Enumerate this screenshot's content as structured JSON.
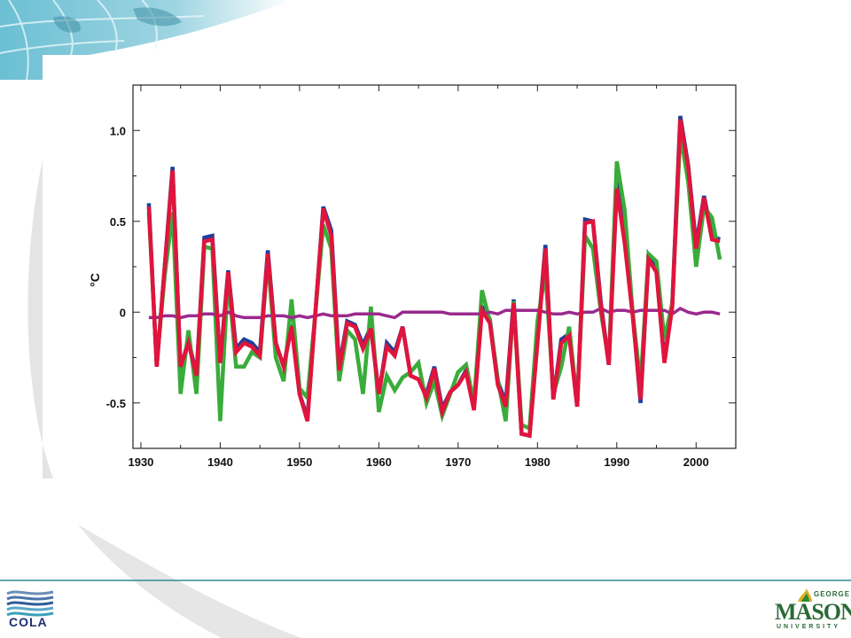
{
  "slide": {
    "colors": {
      "globe_teal": "#5fb3c9",
      "swoosh_gray": "#e4e4e4",
      "footer_rule": "#2b8c95"
    }
  },
  "chart_data": {
    "type": "line",
    "ylabel": "°C",
    "xlim": [
      1929,
      2005
    ],
    "ylim": [
      -0.75,
      1.25
    ],
    "x_ticks": [
      1930,
      1940,
      1950,
      1960,
      1970,
      1980,
      1990,
      2000
    ],
    "y_ticks": [
      1.0,
      0.5,
      0,
      -0.5
    ],
    "y_tick_labels": [
      "1.0",
      "0.5",
      "0",
      "-0.5"
    ],
    "grid": false,
    "x": [
      1931,
      1932,
      1933,
      1934,
      1935,
      1936,
      1937,
      1938,
      1939,
      1940,
      1941,
      1942,
      1943,
      1944,
      1945,
      1946,
      1947,
      1948,
      1949,
      1950,
      1951,
      1952,
      1953,
      1954,
      1955,
      1956,
      1957,
      1958,
      1959,
      1960,
      1961,
      1962,
      1963,
      1964,
      1965,
      1966,
      1967,
      1968,
      1969,
      1970,
      1971,
      1972,
      1973,
      1974,
      1975,
      1976,
      1977,
      1978,
      1979,
      1980,
      1981,
      1982,
      1983,
      1984,
      1985,
      1986,
      1987,
      1988,
      1989,
      1990,
      1991,
      1992,
      1993,
      1994,
      1995,
      1996,
      1997,
      1998,
      1999,
      2000,
      2001,
      2002,
      2003
    ],
    "series": [
      {
        "color": "#1f3f9a",
        "values": [
          0.6,
          -0.3,
          0.25,
          0.8,
          -0.32,
          -0.15,
          -0.35,
          0.41,
          0.42,
          -0.28,
          0.23,
          -0.2,
          -0.15,
          -0.17,
          -0.22,
          0.34,
          -0.17,
          -0.3,
          -0.07,
          -0.45,
          -0.58,
          0.0,
          0.58,
          0.45,
          -0.3,
          -0.05,
          -0.07,
          -0.18,
          -0.08,
          -0.45,
          -0.17,
          -0.22,
          -0.08,
          -0.35,
          -0.37,
          -0.45,
          -0.3,
          -0.53,
          -0.44,
          -0.4,
          -0.32,
          -0.52,
          0.03,
          -0.04,
          -0.38,
          -0.5,
          0.07,
          -0.67,
          -0.68,
          -0.15,
          0.37,
          -0.48,
          -0.15,
          -0.12,
          -0.52,
          0.51,
          0.5,
          0.05,
          -0.29,
          0.72,
          0.4,
          0.0,
          -0.5,
          0.31,
          0.23,
          -0.27,
          0.05,
          1.08,
          0.81,
          0.37,
          0.64,
          0.42,
          0.4
        ]
      },
      {
        "color": "#3aac3a",
        "values": [
          0.55,
          -0.28,
          0.2,
          0.55,
          -0.45,
          -0.1,
          -0.45,
          0.36,
          0.35,
          -0.6,
          0.2,
          -0.3,
          -0.3,
          -0.22,
          -0.25,
          0.3,
          -0.25,
          -0.38,
          0.07,
          -0.42,
          -0.47,
          0.0,
          0.48,
          0.35,
          -0.38,
          -0.1,
          -0.15,
          -0.45,
          0.03,
          -0.55,
          -0.35,
          -0.43,
          -0.36,
          -0.33,
          -0.28,
          -0.5,
          -0.38,
          -0.57,
          -0.45,
          -0.33,
          -0.29,
          -0.5,
          0.12,
          -0.05,
          -0.37,
          -0.6,
          0.06,
          -0.62,
          -0.64,
          -0.05,
          0.22,
          -0.45,
          -0.3,
          -0.08,
          -0.5,
          0.42,
          0.35,
          0.0,
          -0.27,
          0.83,
          0.56,
          0.0,
          -0.4,
          0.32,
          0.28,
          -0.15,
          0.05,
          0.98,
          0.72,
          0.25,
          0.58,
          0.52,
          0.29
        ]
      },
      {
        "color": "#9a2a8e",
        "values": [
          -0.03,
          -0.03,
          -0.02,
          -0.02,
          -0.03,
          -0.02,
          -0.02,
          -0.01,
          -0.01,
          -0.02,
          0.0,
          -0.02,
          -0.03,
          -0.03,
          -0.03,
          -0.02,
          -0.02,
          -0.02,
          -0.03,
          -0.02,
          -0.03,
          -0.02,
          -0.01,
          -0.02,
          -0.02,
          -0.02,
          -0.01,
          -0.01,
          -0.01,
          -0.01,
          -0.02,
          -0.03,
          0.0,
          0.0,
          0.0,
          0.0,
          0.0,
          0.0,
          -0.01,
          -0.01,
          -0.01,
          -0.01,
          -0.01,
          0.0,
          -0.01,
          0.01,
          0.01,
          0.01,
          0.01,
          0.01,
          0.0,
          -0.01,
          -0.01,
          0.0,
          -0.01,
          0.0,
          0.0,
          0.02,
          0.0,
          0.01,
          0.01,
          0.0,
          0.01,
          0.01,
          0.01,
          0.01,
          -0.01,
          0.02,
          0.0,
          -0.01,
          0.0,
          0.0,
          -0.01
        ]
      },
      {
        "color": "#e0143c",
        "values": [
          0.58,
          -0.3,
          0.25,
          0.78,
          -0.3,
          -0.17,
          -0.35,
          0.39,
          0.4,
          -0.28,
          0.22,
          -0.22,
          -0.17,
          -0.19,
          -0.24,
          0.32,
          -0.17,
          -0.3,
          -0.08,
          -0.45,
          -0.6,
          0.0,
          0.57,
          0.42,
          -0.32,
          -0.06,
          -0.08,
          -0.2,
          -0.09,
          -0.45,
          -0.19,
          -0.24,
          -0.08,
          -0.35,
          -0.37,
          -0.47,
          -0.31,
          -0.55,
          -0.44,
          -0.4,
          -0.33,
          -0.54,
          0.01,
          -0.06,
          -0.4,
          -0.52,
          0.05,
          -0.67,
          -0.68,
          -0.17,
          0.35,
          -0.48,
          -0.17,
          -0.13,
          -0.52,
          0.49,
          0.5,
          0.03,
          -0.29,
          0.68,
          0.38,
          -0.02,
          -0.48,
          0.29,
          0.22,
          -0.28,
          0.03,
          1.06,
          0.8,
          0.35,
          0.63,
          0.4,
          0.39
        ]
      }
    ]
  },
  "logos": {
    "left": {
      "text": "COLA",
      "icon": "cola-waves-icon"
    },
    "right": {
      "wordmark": "MASON",
      "top_text": "GEORGE",
      "bottom_text": "UNIVERSITY",
      "icon": "gmu-flame-icon"
    }
  }
}
